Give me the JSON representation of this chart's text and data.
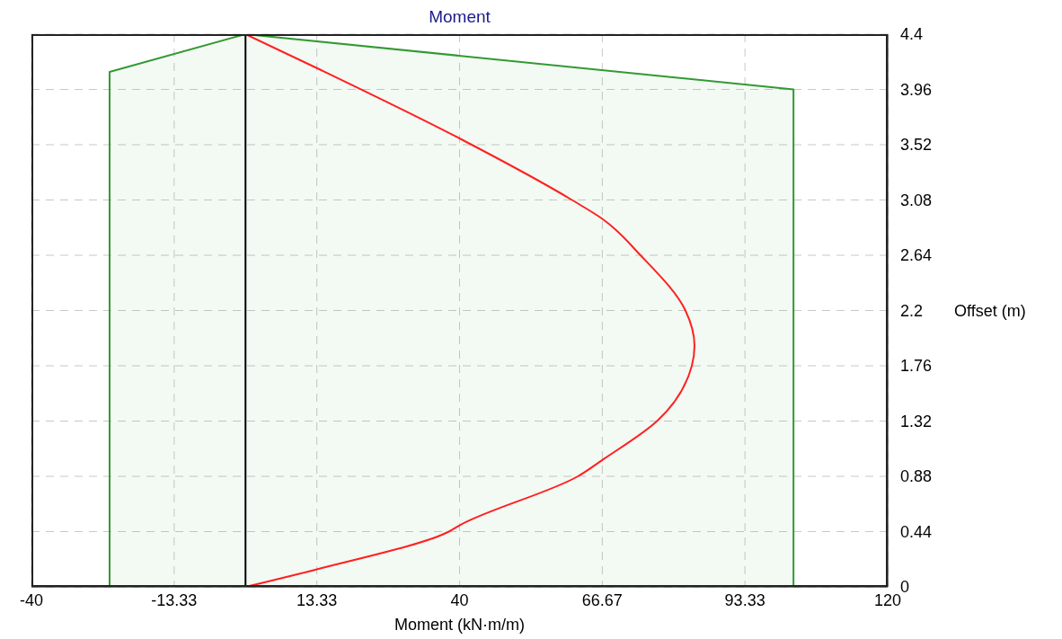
{
  "chart_data": {
    "type": "line",
    "title": "Moment",
    "xlabel": "Moment (kN·m/m)",
    "ylabel": "Offset (m)",
    "xlim": [
      -40,
      120
    ],
    "xticks": [
      -40,
      -13.33,
      13.33,
      40,
      66.67,
      93.33,
      120
    ],
    "ylim": [
      0,
      4.4
    ],
    "yticks": [
      0,
      0.44,
      0.88,
      1.32,
      1.76,
      2.2,
      2.64,
      3.08,
      3.52,
      3.96,
      4.4
    ],
    "grid": true,
    "marker": "none",
    "line_style": "solid",
    "ref_lines": [
      {
        "axis": "x",
        "value": 0,
        "color": "#000000"
      }
    ],
    "series": [
      {
        "type": "area",
        "color": "#339933",
        "x": [
          -25.4,
          -25.4,
          0,
          102.4,
          102.4
        ],
        "values": [
          0,
          4.1,
          4.4,
          3.96,
          0
        ]
      },
      {
        "color": "#ff2020",
        "x": [
          0,
          13.33,
          40,
          61,
          66.67,
          73.8,
          82.2,
          83.9,
          83.4,
          76.9,
          66.67,
          62.1,
          40,
          38,
          13.33,
          0
        ],
        "values": [
          4.4,
          4.13,
          3.57,
          3.08,
          2.93,
          2.64,
          2.2,
          1.92,
          1.76,
          1.32,
          1.01,
          0.88,
          0.49,
          0.44,
          0.14,
          0
        ]
      }
    ]
  }
}
